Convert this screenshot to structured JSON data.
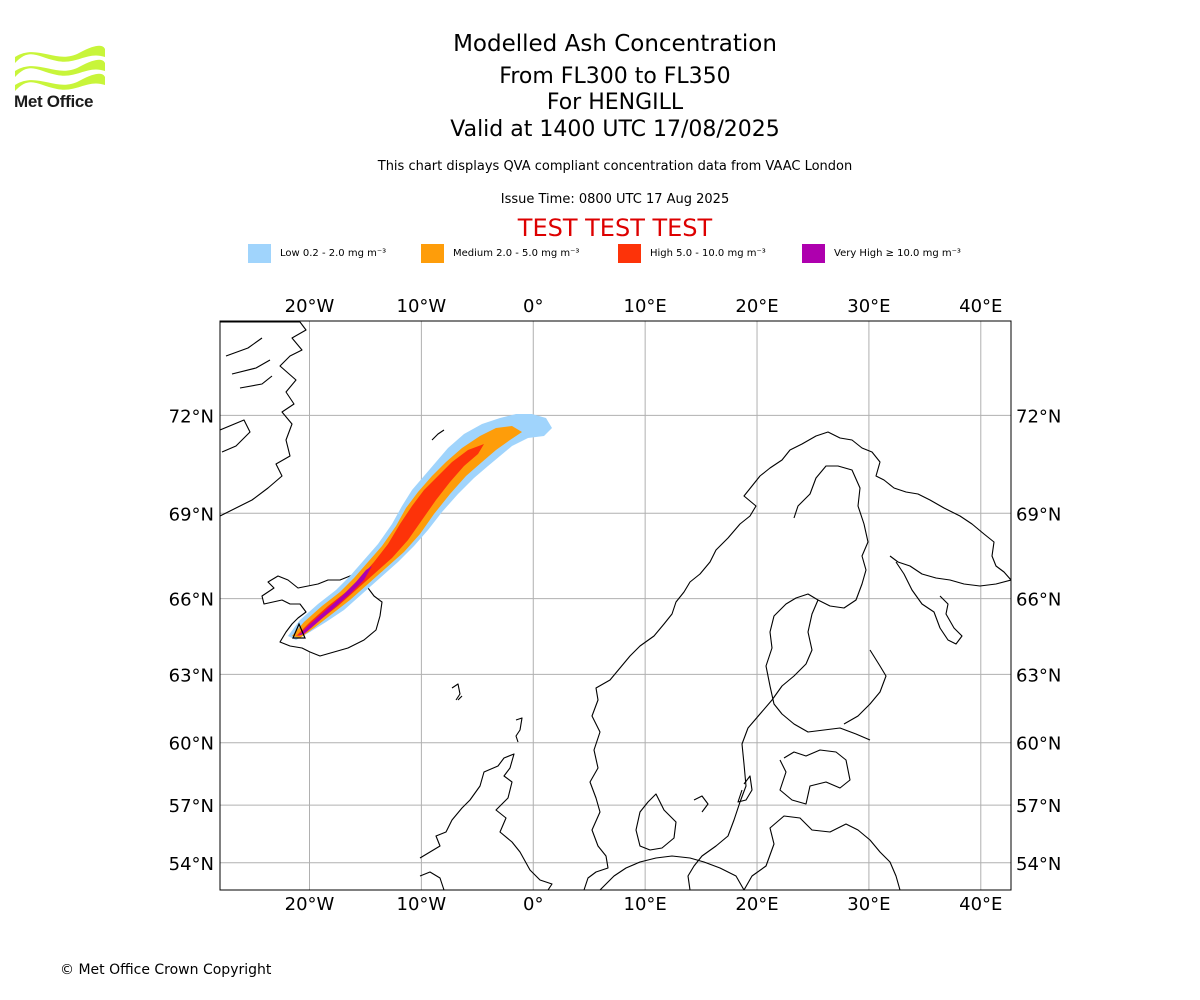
{
  "logo": {
    "text": "Met Office",
    "color": "#c8f53a",
    "icon": "met-office-wave-logo-icon"
  },
  "titles": {
    "line1": "Modelled Ash Concentration",
    "line2": "From FL300 to FL350",
    "line3": "For HENGILL",
    "line4": "Valid at 1400 UTC 17/08/2025"
  },
  "subtitle": "This chart displays QVA compliant concentration data from VAAC London",
  "issue_time": "Issue Time: 0800 UTC 17 Aug 2025",
  "test_banner": {
    "text": "TEST TEST TEST",
    "color": "#dd0000"
  },
  "legend": [
    {
      "label": "Low 0.2 - 2.0 mg m⁻³",
      "color": "#a0d4fc"
    },
    {
      "label": "Medium 2.0 - 5.0 mg m⁻³",
      "color": "#fe9d0a"
    },
    {
      "label": "High 5.0 - 10.0 mg m⁻³",
      "color": "#fd3309"
    },
    {
      "label": "Very High ≥ 10.0 mg m⁻³",
      "color": "#ae00ae"
    }
  ],
  "map": {
    "lon_ticks": [
      "20°W",
      "10°W",
      "0°",
      "10°E",
      "20°E",
      "30°E",
      "40°E"
    ],
    "lat_ticks": [
      "72°N",
      "69°N",
      "66°N",
      "63°N",
      "60°N",
      "57°N",
      "54°N"
    ],
    "lon_values": [
      -20,
      -10,
      0,
      10,
      20,
      30,
      40
    ],
    "lat_values": [
      72,
      69,
      66,
      63,
      60,
      57,
      54
    ],
    "extent": {
      "lon": [
        -28,
        42.7
      ],
      "lat": [
        52.5,
        74.5
      ]
    },
    "volcano_marker": "volcano-triangle-icon",
    "land_outline_color": "#000000",
    "grid_color": "#b0b0b0"
  },
  "copyright": "© Met Office Crown Copyright"
}
